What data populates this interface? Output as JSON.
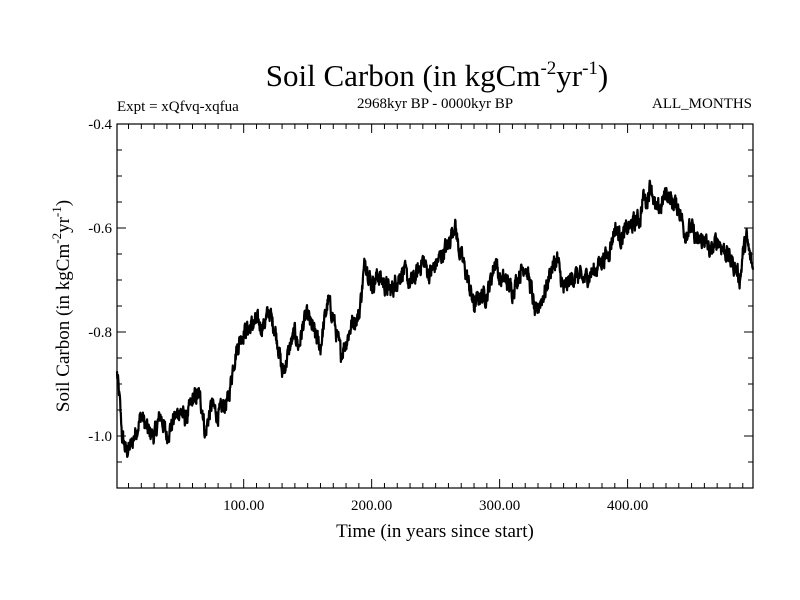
{
  "chart_data": {
    "type": "line",
    "title": "Soil Carbon (in kgCm",
    "title_sup1": "-2",
    "title_mid": "yr",
    "title_sup2": "-1",
    "title_end": ")",
    "expt": "Expt = xQfvq-xqfua",
    "period": "2968kyr BP - 0000kyr BP",
    "months": "ALL_MONTHS",
    "xlabel": "Time (in years since start)",
    "ylabel": "Soil Carbon (in kgCm",
    "ylabel_sup1": "-2",
    "ylabel_mid": "yr",
    "ylabel_sup2": "-1",
    "ylabel_end": ")",
    "xlim": [
      1,
      498
    ],
    "ylim": [
      -1.1,
      -0.4
    ],
    "xticks": [
      100,
      200,
      300,
      400
    ],
    "xtick_labels": [
      "100.00",
      "200.00",
      "300.00",
      "400.00"
    ],
    "yticks": [
      -0.4,
      -0.6,
      -0.8,
      -1.0
    ],
    "ytick_labels": [
      "-0.4",
      "-0.6",
      "-0.8",
      "-1.0"
    ],
    "series": [
      {
        "name": "Soil Carbon",
        "x": [
          1,
          3,
          5,
          8,
          12,
          16,
          20,
          25,
          30,
          35,
          40,
          45,
          50,
          55,
          60,
          65,
          68,
          70,
          72,
          75,
          80,
          85,
          88,
          92,
          95,
          98,
          100,
          105,
          110,
          115,
          120,
          125,
          128,
          130,
          133,
          136,
          140,
          143,
          147,
          150,
          155,
          160,
          163,
          166,
          170,
          173,
          176,
          180,
          185,
          190,
          195,
          200,
          205,
          210,
          215,
          220,
          225,
          230,
          235,
          240,
          245,
          250,
          255,
          260,
          265,
          268,
          272,
          276,
          280,
          285,
          290,
          293,
          297,
          300,
          305,
          310,
          315,
          320,
          325,
          328,
          332,
          336,
          340,
          345,
          350,
          355,
          360,
          365,
          370,
          375,
          380,
          385,
          390,
          395,
          400,
          405,
          410,
          412,
          415,
          418,
          422,
          426,
          430,
          435,
          440,
          445,
          450,
          455,
          460,
          465,
          470,
          475,
          480,
          485,
          488,
          490,
          493,
          496,
          498
        ],
        "values": [
          -0.88,
          -0.93,
          -1.0,
          -1.03,
          -1.02,
          -0.99,
          -0.96,
          -0.99,
          -1.0,
          -0.96,
          -1.0,
          -0.97,
          -0.95,
          -0.97,
          -0.93,
          -0.92,
          -0.95,
          -1.0,
          -0.97,
          -0.94,
          -0.96,
          -0.94,
          -0.93,
          -0.86,
          -0.83,
          -0.81,
          -0.8,
          -0.79,
          -0.78,
          -0.79,
          -0.76,
          -0.8,
          -0.84,
          -0.88,
          -0.86,
          -0.83,
          -0.8,
          -0.83,
          -0.78,
          -0.77,
          -0.8,
          -0.83,
          -0.78,
          -0.74,
          -0.77,
          -0.81,
          -0.84,
          -0.82,
          -0.78,
          -0.77,
          -0.66,
          -0.71,
          -0.69,
          -0.71,
          -0.72,
          -0.7,
          -0.68,
          -0.71,
          -0.69,
          -0.66,
          -0.69,
          -0.67,
          -0.65,
          -0.63,
          -0.59,
          -0.64,
          -0.67,
          -0.71,
          -0.75,
          -0.73,
          -0.73,
          -0.7,
          -0.66,
          -0.7,
          -0.7,
          -0.72,
          -0.69,
          -0.67,
          -0.72,
          -0.77,
          -0.74,
          -0.72,
          -0.68,
          -0.66,
          -0.72,
          -0.7,
          -0.69,
          -0.7,
          -0.69,
          -0.68,
          -0.66,
          -0.65,
          -0.6,
          -0.62,
          -0.6,
          -0.59,
          -0.58,
          -0.54,
          -0.55,
          -0.51,
          -0.57,
          -0.56,
          -0.53,
          -0.55,
          -0.56,
          -0.61,
          -0.6,
          -0.63,
          -0.62,
          -0.65,
          -0.62,
          -0.64,
          -0.66,
          -0.68,
          -0.7,
          -0.65,
          -0.62,
          -0.66,
          -0.68
        ]
      }
    ]
  }
}
